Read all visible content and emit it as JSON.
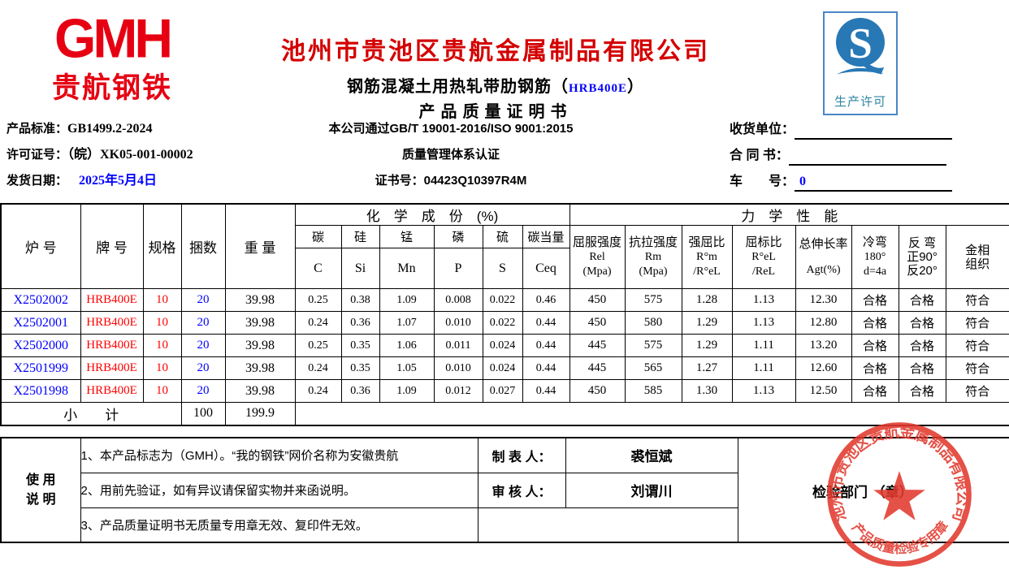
{
  "colors": {
    "brand_red": "#e60012",
    "title_red": "#d40000",
    "value_red": "#ff0000",
    "value_blue": "#0000ff",
    "qs_blue": "#2878b5",
    "stamp_red": "#e23a2e"
  },
  "header": {
    "logo": {
      "text": "GMH",
      "subtitle": "贵航钢铁"
    },
    "company_name": "池州市贵池区贵航金属制品有限公司",
    "product_line": {
      "prefix": "钢筋混凝土用热轧带肋钢筋（",
      "grade": "HRB400E",
      "suffix": "）"
    },
    "doc_title": "产品质量证明书",
    "left_fields": [
      {
        "label": "产品标准：",
        "value": "GB1499.2-2024"
      },
      {
        "label": "许可证号：",
        "value": "（皖）XK05-001-00002"
      },
      {
        "label": "发货日期：",
        "value": "2025年5月4日"
      }
    ],
    "center_lines": [
      "本公司通过GB/T 19001-2016/ISO 9001:2015",
      "质量管理体系认证",
      "证书号：04423Q10397R4M"
    ],
    "right_fields": [
      {
        "label": "收货单位：",
        "value": ""
      },
      {
        "label": "合 同 书：",
        "value": ""
      },
      {
        "label": "车　　号：",
        "value": "0"
      }
    ],
    "qs_mark": {
      "letter": "S",
      "caption": "生产许可"
    }
  },
  "table": {
    "left_headers": [
      "炉  号",
      "牌  号",
      "规格",
      "捆数",
      "重  量"
    ],
    "group_headers": {
      "chemical": "化　学　成　份　(%)",
      "mechanical": "力　学　性　能"
    },
    "chem_headers": {
      "cn": [
        "碳",
        "硅",
        "锰",
        "磷",
        "硫",
        "碳当量"
      ],
      "symbols": [
        "C",
        "Si",
        "Mn",
        "P",
        "S",
        "Ceq"
      ]
    },
    "mech_headers": [
      [
        "屈服强度",
        "Rel",
        "(Mpa)"
      ],
      [
        "抗拉强度",
        "Rm",
        "(Mpa)"
      ],
      [
        "强屈比",
        "R°m",
        "/R°eL"
      ],
      [
        "屈标比",
        "R°eL",
        "/ReL"
      ],
      [
        "总伸长率",
        "Agt(%)"
      ],
      [
        "冷弯",
        "180°",
        "d=4a"
      ],
      [
        "反 弯",
        "正90°",
        "反20°"
      ],
      [
        "金相",
        "组织"
      ]
    ],
    "rows": [
      [
        "X2502002",
        "HRB400E",
        "10",
        "20",
        "39.98",
        "0.25",
        "0.38",
        "1.09",
        "0.008",
        "0.022",
        "0.46",
        "450",
        "575",
        "1.28",
        "1.13",
        "12.30",
        "合格",
        "合格",
        "符合"
      ],
      [
        "X2502001",
        "HRB400E",
        "10",
        "20",
        "39.98",
        "0.24",
        "0.36",
        "1.07",
        "0.010",
        "0.022",
        "0.44",
        "450",
        "580",
        "1.29",
        "1.13",
        "12.80",
        "合格",
        "合格",
        "符合"
      ],
      [
        "X2502000",
        "HRB400E",
        "10",
        "20",
        "39.98",
        "0.25",
        "0.35",
        "1.06",
        "0.011",
        "0.024",
        "0.44",
        "445",
        "575",
        "1.29",
        "1.11",
        "13.20",
        "合格",
        "合格",
        "符合"
      ],
      [
        "X2501999",
        "HRB400E",
        "10",
        "20",
        "39.98",
        "0.24",
        "0.35",
        "1.05",
        "0.010",
        "0.024",
        "0.44",
        "445",
        "565",
        "1.27",
        "1.11",
        "12.60",
        "合格",
        "合格",
        "符合"
      ],
      [
        "X2501998",
        "HRB400E",
        "10",
        "20",
        "39.98",
        "0.24",
        "0.36",
        "1.09",
        "0.012",
        "0.027",
        "0.44",
        "450",
        "585",
        "1.30",
        "1.13",
        "12.50",
        "合格",
        "合格",
        "符合"
      ]
    ],
    "subtotal": {
      "label": "小　　计",
      "bundles": "100",
      "weight": "199.9"
    }
  },
  "footer": {
    "usage_label_line1": "使 用",
    "usage_label_line2": "说 明",
    "notes": [
      "1、本产品标志为（GMH）。“我的钢铁”网价名称为安徽贵航",
      "2、用前先验证，如有异议请保留实物并来函说明。",
      "3、产品质量证明书无质量专用章无效、复印件无效。"
    ],
    "preparer_label": "制 表 人：",
    "preparer_name": "裘恒斌",
    "reviewer_label": "审 核 人：",
    "reviewer_name": "刘谓川",
    "dept_label": "检验部门 （章）",
    "stamp": {
      "ring_text": "池州市贵池区贵航金属制品有限公司",
      "bottom_text": "产品质量检验专用章"
    }
  }
}
